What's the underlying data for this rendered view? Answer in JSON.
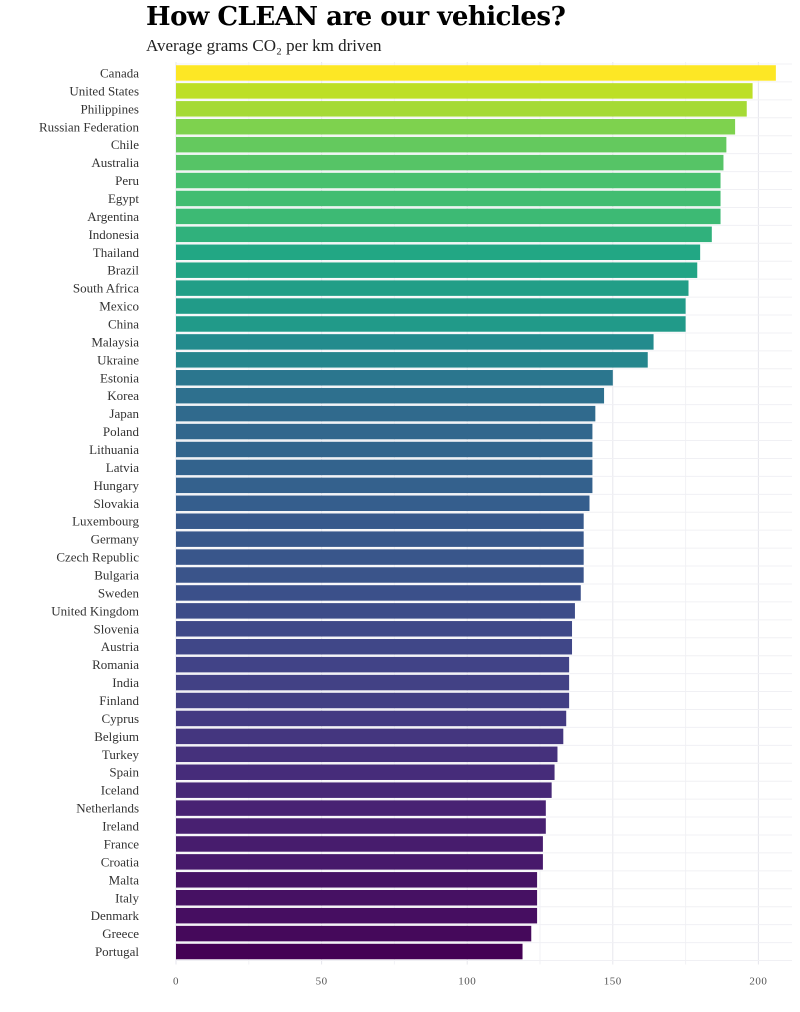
{
  "header": {
    "title": "How CLEAN are our vehicles?",
    "subtitle": "Average grams CO₂ per km driven"
  },
  "chart_data": {
    "type": "bar",
    "orientation": "horizontal",
    "title": "How CLEAN are our vehicles?",
    "subtitle": "Average grams CO₂ per km driven",
    "xlabel": "",
    "ylabel": "",
    "xlim": [
      0,
      210
    ],
    "ticks": [
      0,
      50,
      100,
      150,
      200
    ],
    "grid": true,
    "color_scale": "viridis",
    "categories": [
      "Canada",
      "United States",
      "Philippines",
      "Russian Federation",
      "Chile",
      "Australia",
      "Peru",
      "Egypt",
      "Argentina",
      "Indonesia",
      "Thailand",
      "Brazil",
      "South Africa",
      "Mexico",
      "China",
      "Malaysia",
      "Ukraine",
      "Estonia",
      "Korea",
      "Japan",
      "Poland",
      "Lithuania",
      "Latvia",
      "Hungary",
      "Slovakia",
      "Luxembourg",
      "Germany",
      "Czech Republic",
      "Bulgaria",
      "Sweden",
      "United Kingdom",
      "Slovenia",
      "Austria",
      "Romania",
      "India",
      "Finland",
      "Cyprus",
      "Belgium",
      "Turkey",
      "Spain",
      "Iceland",
      "Netherlands",
      "Ireland",
      "France",
      "Croatia",
      "Malta",
      "Italy",
      "Denmark",
      "Greece",
      "Portugal"
    ],
    "values": [
      206,
      198,
      196,
      192,
      189,
      188,
      187,
      187,
      187,
      184,
      180,
      179,
      176,
      175,
      175,
      164,
      162,
      150,
      147,
      144,
      143,
      143,
      143,
      143,
      142,
      140,
      140,
      140,
      140,
      139,
      137,
      136,
      136,
      135,
      135,
      135,
      134,
      133,
      131,
      130,
      129,
      127,
      127,
      126,
      126,
      124,
      124,
      124,
      122,
      119
    ]
  }
}
